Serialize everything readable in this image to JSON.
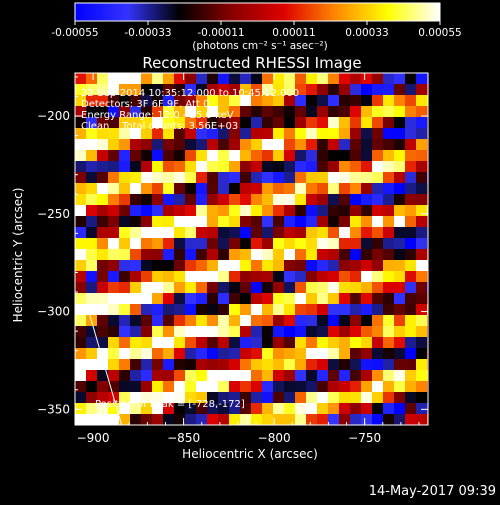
{
  "chart_data": {
    "type": "heatmap",
    "title": "Reconstructed RHESSI Image",
    "xlabel": "Heliocentric X (arcsec)",
    "ylabel": "Heliocentric Y (arcsec)",
    "xlim": [
      -910,
      -715
    ],
    "ylim": [
      -358,
      -178
    ],
    "xticks": [
      -900,
      -850,
      -800,
      -750
    ],
    "yticks": [
      -200,
      -250,
      -300,
      -350
    ],
    "colorbar": {
      "min": -0.00055,
      "max": 0.00055,
      "ticks": [
        "-0.00055",
        "-0.00033",
        "-0.00011",
        "0.00011",
        "0.00033",
        "0.00055"
      ],
      "unit": "(photons cm⁻² s⁻¹ asec⁻²)",
      "colormap": [
        "#0000ff",
        "#3333ff",
        "#000000",
        "#880000",
        "#dd0000",
        "#ff8800",
        "#ffff00",
        "#ffffff"
      ]
    },
    "info_lines": [
      "22-Sep-2014 10:35:12.000 to 10:45:12.000",
      "Detectors: 3F 6F 9F, Att 0",
      "Energy Range: 12.0 - 25.0 keV",
      "Clean    Total counts: 3.56E+03"
    ],
    "annotation": "Position of Peak = [-728,-172]",
    "pattern": "diagonal bright/dark stripes (back-projection fringes), brightest at lower-left",
    "limb_line": {
      "x": [
        -903,
        -883
      ],
      "y": [
        -298,
        -362
      ]
    }
  },
  "footer": {
    "timestamp": "14-May-2017 09:39"
  }
}
